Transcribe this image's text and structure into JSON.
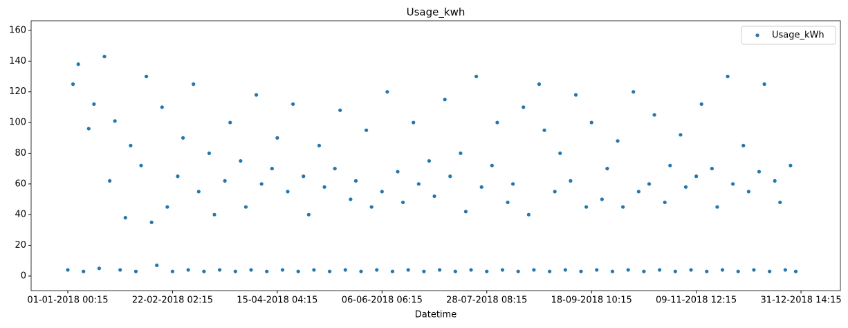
{
  "chart_data": {
    "type": "scatter",
    "title": "Usage_kwh",
    "x_label": "Datetime",
    "legend_position": "upper right",
    "xlim": [
      -1750,
      36880
    ],
    "ylim": [
      -9.5,
      166.3
    ],
    "xticks": [
      {
        "value": 0,
        "label": "01-01-2018 00:15"
      },
      {
        "value": 5000,
        "label": "22-02-2018 02:15"
      },
      {
        "value": 10000,
        "label": "15-04-2018 04:15"
      },
      {
        "value": 15000,
        "label": "06-06-2018 06:15"
      },
      {
        "value": 20000,
        "label": "28-07-2018 08:15"
      },
      {
        "value": 25000,
        "label": "18-09-2018 10:15"
      },
      {
        "value": 30000,
        "label": "09-11-2018 12:15"
      },
      {
        "value": 35000,
        "label": "31-12-2018 14:15"
      }
    ],
    "yticks": [
      0,
      20,
      40,
      60,
      80,
      100,
      120,
      140,
      160
    ],
    "x": [
      0,
      250,
      500,
      750,
      1000,
      1250,
      1500,
      1750,
      2000,
      2250,
      2500,
      2750,
      3000,
      3250,
      3500,
      3750,
      4000,
      4250,
      4500,
      4750,
      5000,
      5250,
      5500,
      5750,
      6000,
      6250,
      6500,
      6750,
      7000,
      7250,
      7500,
      7750,
      8000,
      8250,
      8500,
      8750,
      9000,
      9250,
      9500,
      9750,
      10000,
      10250,
      10500,
      10750,
      11000,
      11250,
      11500,
      11750,
      12000,
      12250,
      12500,
      12750,
      13000,
      13250,
      13500,
      13750,
      14000,
      14250,
      14500,
      14750,
      15000,
      15250,
      15500,
      15750,
      16000,
      16250,
      16500,
      16750,
      17000,
      17250,
      17500,
      17750,
      18000,
      18250,
      18500,
      18750,
      19000,
      19250,
      19500,
      19750,
      20000,
      20250,
      20500,
      20750,
      21000,
      21250,
      21500,
      21750,
      22000,
      22250,
      22500,
      22750,
      23000,
      23250,
      23500,
      23750,
      24000,
      24250,
      24500,
      24750,
      25000,
      25250,
      25500,
      25750,
      26000,
      26250,
      26500,
      26750,
      27000,
      27250,
      27500,
      27750,
      28000,
      28250,
      28500,
      28750,
      29000,
      29250,
      29500,
      29750,
      30000,
      30250,
      30500,
      30750,
      31000,
      31250,
      31500,
      31750,
      32000,
      32250,
      32500,
      32750,
      33000,
      33250,
      33500,
      33750,
      34000,
      34250,
      34500,
      34750
    ],
    "series": [
      {
        "name": "Usage_kWh",
        "color": "#1f77b4",
        "values": [
          4,
          125,
          138,
          3,
          96,
          112,
          5,
          143,
          62,
          101,
          4,
          38,
          85,
          3,
          72,
          130,
          35,
          7,
          110,
          45,
          3,
          65,
          90,
          4,
          125,
          55,
          3,
          80,
          40,
          4,
          62,
          100,
          3,
          75,
          45,
          4,
          118,
          60,
          3,
          70,
          90,
          4,
          55,
          112,
          3,
          65,
          40,
          4,
          85,
          58,
          3,
          70,
          108,
          4,
          50,
          62,
          3,
          95,
          45,
          4,
          55,
          120,
          3,
          68,
          48,
          4,
          100,
          60,
          3,
          75,
          52,
          4,
          115,
          65,
          3,
          80,
          42,
          4,
          130,
          58,
          3,
          72,
          100,
          4,
          48,
          60,
          3,
          110,
          40,
          4,
          125,
          95,
          3,
          55,
          80,
          4,
          62,
          118,
          3,
          45,
          100,
          4,
          50,
          70,
          3,
          88,
          45,
          4,
          120,
          55,
          3,
          60,
          105,
          4,
          48,
          72,
          3,
          92,
          58,
          4,
          65,
          112,
          3,
          70,
          45,
          4,
          130,
          60,
          3,
          85,
          55,
          4,
          68,
          125,
          3,
          62,
          48,
          4,
          72,
          3
        ]
      }
    ]
  }
}
